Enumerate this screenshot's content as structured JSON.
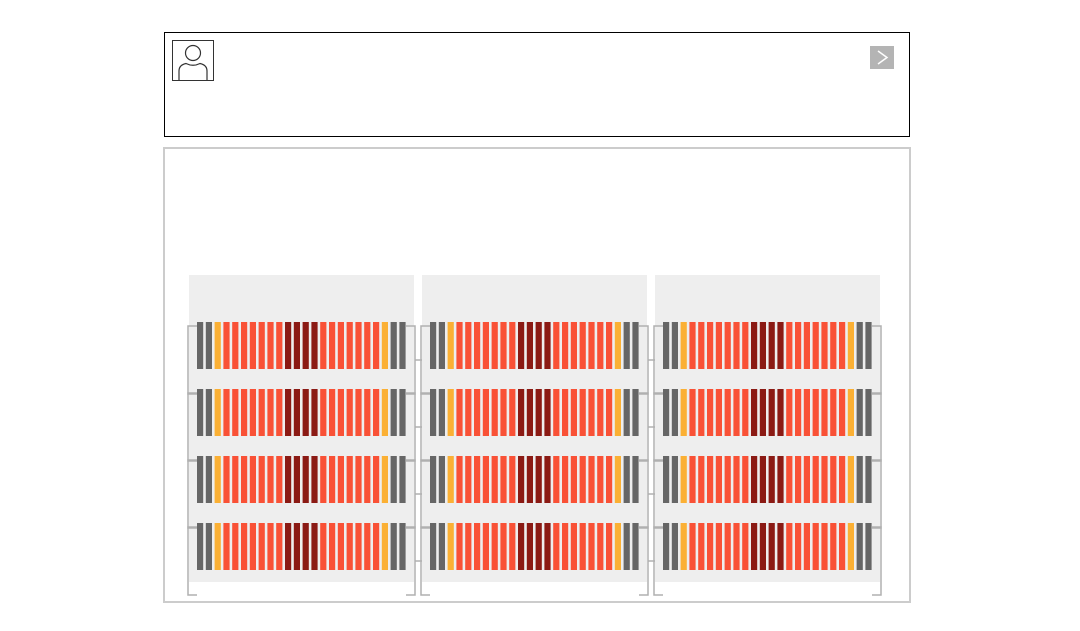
{
  "header": {
    "avatar_icon": "user-icon",
    "next_icon": "chevron-right-icon"
  },
  "racks": {
    "count": 3,
    "rows_per_rack": 4,
    "slot_pattern": [
      "gray",
      "gray",
      "yellow",
      "red",
      "red",
      "red",
      "red",
      "red",
      "red",
      "red",
      "dark",
      "dark",
      "dark",
      "dark",
      "red",
      "red",
      "red",
      "red",
      "red",
      "red",
      "red",
      "yellow",
      "gray",
      "gray"
    ],
    "colors": {
      "gray": "#666666",
      "yellow": "#fbb034",
      "red": "#f95136",
      "dark": "#8b1a14",
      "panel": "#eeeeee",
      "bracket": "#b0b0b0"
    }
  }
}
